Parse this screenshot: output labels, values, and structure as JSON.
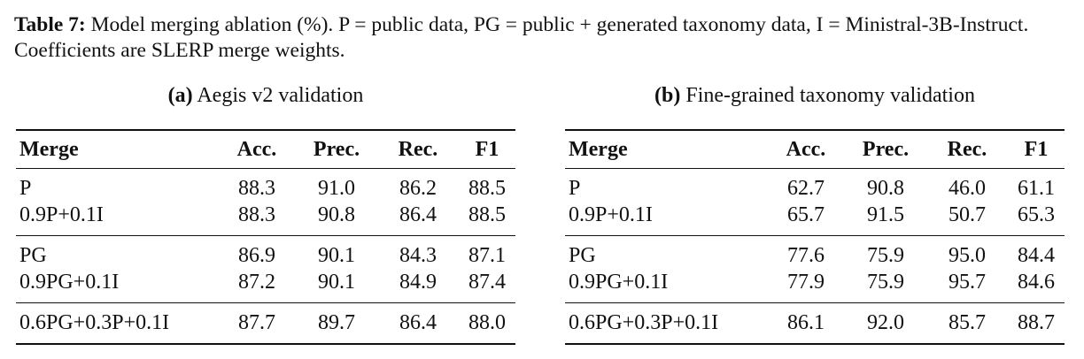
{
  "caption": {
    "label": "Table 7:",
    "text": "Model merging ablation (%). P = public data, PG = public + generated taxonomy data, I = Ministral-3B-Instruct. Coefficients are SLERP merge weights."
  },
  "subtables": [
    {
      "label": "(a)",
      "title": "Aegis v2 validation",
      "header": [
        "Merge",
        "Acc.",
        "Prec.",
        "Rec.",
        "F1"
      ],
      "groups": [
        [
          [
            "P",
            "88.3",
            "91.0",
            "86.2",
            "88.5"
          ],
          [
            "0.9P+0.1I",
            "88.3",
            "90.8",
            "86.4",
            "88.5"
          ]
        ],
        [
          [
            "PG",
            "86.9",
            "90.1",
            "84.3",
            "87.1"
          ],
          [
            "0.9PG+0.1I",
            "87.2",
            "90.1",
            "84.9",
            "87.4"
          ]
        ],
        [
          [
            "0.6PG+0.3P+0.1I",
            "87.7",
            "89.7",
            "86.4",
            "88.0"
          ]
        ]
      ]
    },
    {
      "label": "(b)",
      "title": "Fine-grained taxonomy validation",
      "header": [
        "Merge",
        "Acc.",
        "Prec.",
        "Rec.",
        "F1"
      ],
      "groups": [
        [
          [
            "P",
            "62.7",
            "90.8",
            "46.0",
            "61.1"
          ],
          [
            "0.9P+0.1I",
            "65.7",
            "91.5",
            "50.7",
            "65.3"
          ]
        ],
        [
          [
            "PG",
            "77.6",
            "75.9",
            "95.0",
            "84.4"
          ],
          [
            "0.9PG+0.1I",
            "77.9",
            "75.9",
            "95.7",
            "84.6"
          ]
        ],
        [
          [
            "0.6PG+0.3P+0.1I",
            "86.1",
            "92.0",
            "85.7",
            "88.7"
          ]
        ]
      ]
    }
  ]
}
